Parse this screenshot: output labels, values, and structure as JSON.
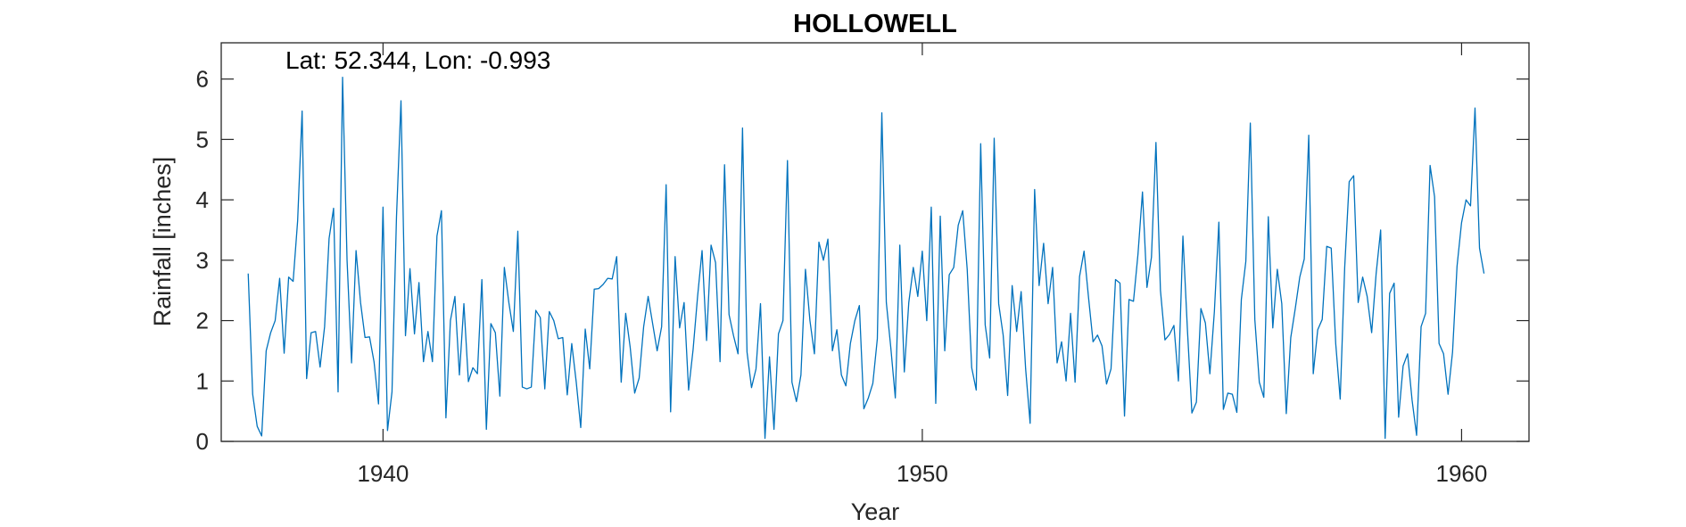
{
  "chart_data": {
    "type": "line",
    "title": "HOLLOWELL",
    "xlabel": "Year",
    "ylabel": "Rainfall [inches]",
    "annotation": "Lat: 52.344, Lon: -0.993",
    "xlim": [
      1937,
      1961.25
    ],
    "ylim": [
      0,
      6.6
    ],
    "xticks": [
      1940,
      1950,
      1960
    ],
    "yticks": [
      0,
      1,
      2,
      3,
      4,
      5,
      6
    ],
    "grid": false,
    "series": [
      {
        "color": "#0072BD",
        "x_start": 1937.5,
        "x_step": 0.08333,
        "values": [
          2.78,
          0.78,
          0.25,
          0.09,
          1.5,
          1.8,
          2.0,
          2.7,
          1.46,
          2.72,
          2.65,
          3.65,
          5.47,
          1.04,
          1.8,
          1.82,
          1.23,
          1.9,
          3.36,
          3.86,
          0.82,
          6.03,
          3.0,
          1.3,
          3.16,
          2.3,
          1.72,
          1.73,
          1.32,
          0.62,
          3.88,
          0.18,
          0.82,
          3.72,
          5.64,
          1.75,
          2.86,
          1.78,
          2.63,
          1.32,
          1.82,
          1.32,
          3.4,
          3.82,
          0.39,
          2.0,
          2.4,
          1.1,
          2.28,
          0.99,
          1.22,
          1.12,
          2.68,
          0.2,
          1.95,
          1.8,
          0.75,
          2.88,
          2.3,
          1.82,
          3.48,
          0.9,
          0.87,
          0.9,
          2.17,
          2.05,
          0.87,
          2.15,
          2.0,
          1.7,
          1.72,
          0.77,
          1.62,
          0.98,
          0.23,
          1.86,
          1.2,
          2.52,
          2.53,
          2.6,
          2.7,
          2.69,
          3.06,
          0.98,
          2.12,
          1.56,
          0.8,
          1.05,
          1.9,
          2.4,
          1.95,
          1.5,
          1.9,
          4.25,
          0.49,
          3.06,
          1.88,
          2.3,
          0.85,
          1.52,
          2.4,
          3.16,
          1.67,
          3.25,
          2.96,
          1.32,
          4.58,
          2.1,
          1.75,
          1.45,
          5.19,
          1.48,
          0.89,
          1.2,
          2.28,
          0.05,
          1.4,
          0.2,
          1.78,
          2.0,
          4.65,
          0.98,
          0.66,
          1.1,
          2.85,
          2.0,
          1.45,
          3.3,
          3.0,
          3.35,
          1.5,
          1.85,
          1.1,
          0.92,
          1.62,
          2.0,
          2.25,
          0.54,
          0.72,
          0.96,
          1.7,
          5.44,
          2.3,
          1.55,
          0.72,
          3.25,
          1.15,
          2.3,
          2.88,
          2.4,
          3.15,
          2.0,
          3.88,
          0.63,
          3.73,
          1.5,
          2.76,
          2.88,
          3.58,
          3.82,
          2.85,
          1.22,
          0.85,
          4.93,
          1.93,
          1.38,
          5.02,
          2.28,
          1.76,
          0.76,
          2.58,
          1.82,
          2.48,
          1.2,
          0.3,
          4.17,
          2.58,
          3.28,
          2.28,
          2.88,
          1.3,
          1.65,
          1.0,
          2.12,
          0.98,
          2.73,
          3.15,
          2.38,
          1.65,
          1.76,
          1.58,
          0.95,
          1.2,
          2.68,
          2.62,
          0.42,
          2.35,
          2.32,
          3.1,
          4.13,
          2.55,
          3.05,
          4.95,
          2.5,
          1.68,
          1.77,
          1.92,
          1.0,
          3.4,
          1.85,
          0.47,
          0.65,
          2.2,
          1.96,
          1.12,
          2.15,
          3.63,
          0.53,
          0.8,
          0.78,
          0.48,
          2.35,
          2.98,
          5.27,
          2.02,
          0.98,
          0.73,
          3.72,
          1.88,
          2.85,
          2.28,
          0.46,
          1.72,
          2.2,
          2.72,
          3.02,
          5.07,
          1.12,
          1.85,
          2.02,
          3.23,
          3.2,
          1.62,
          0.7,
          2.88,
          4.3,
          4.4,
          2.3,
          2.72,
          2.4,
          1.8,
          2.78,
          3.5,
          0.05,
          2.45,
          2.62,
          0.4,
          1.25,
          1.45,
          0.68,
          0.1,
          1.9,
          2.12,
          4.57,
          4.05,
          1.62,
          1.45,
          0.78,
          1.48,
          2.9,
          3.62,
          4.0,
          3.9,
          5.52,
          3.2,
          2.78
        ]
      }
    ]
  }
}
